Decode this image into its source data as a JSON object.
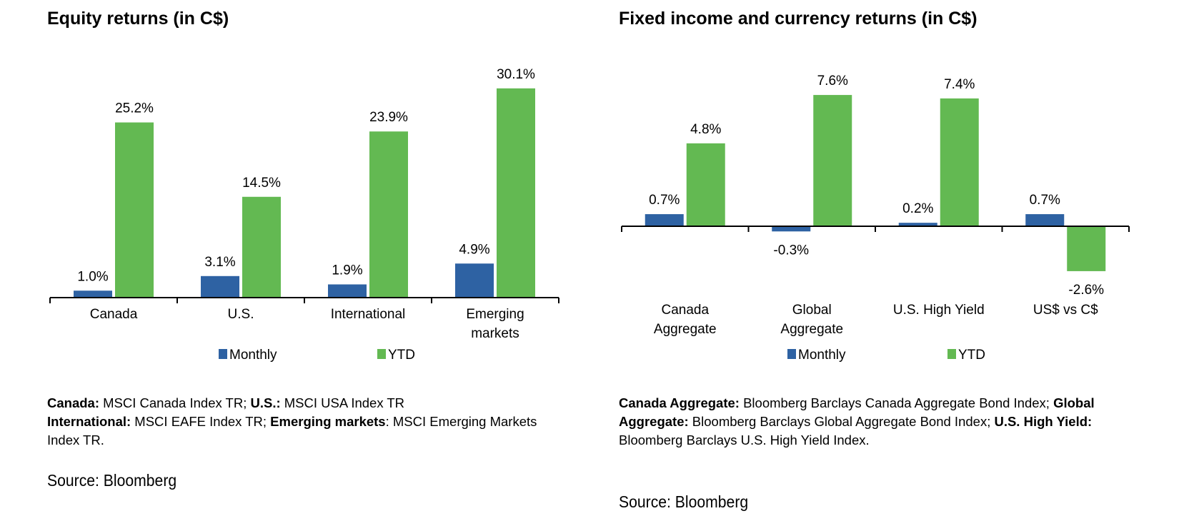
{
  "colors": {
    "monthly": "#2e62a3",
    "ytd": "#63b952",
    "axis": "#000000"
  },
  "chart_data": [
    {
      "type": "bar",
      "title": "Equity returns (in C$)",
      "categories": [
        [
          "Canada"
        ],
        [
          "U.S."
        ],
        [
          "International"
        ],
        [
          "Emerging",
          "markets"
        ]
      ],
      "series": [
        {
          "name": "Monthly",
          "values": [
            1.0,
            3.1,
            1.9,
            4.9
          ],
          "labels": [
            "1.0%",
            "3.1%",
            "1.9%",
            "4.9%"
          ]
        },
        {
          "name": "YTD",
          "values": [
            25.2,
            14.5,
            23.9,
            30.1
          ],
          "labels": [
            "25.2%",
            "14.5%",
            "23.9%",
            "30.1%"
          ]
        }
      ],
      "legend": "bottom",
      "grid": false,
      "unit": "%"
    },
    {
      "type": "bar",
      "title": "Fixed income and currency returns (in C$)",
      "categories": [
        [
          "Canada",
          "Aggregate"
        ],
        [
          "Global",
          "Aggregate"
        ],
        [
          "U.S. High Yield"
        ],
        [
          "US$ vs C$"
        ]
      ],
      "series": [
        {
          "name": "Monthly",
          "values": [
            0.7,
            -0.3,
            0.2,
            0.7
          ],
          "labels": [
            "0.7%",
            "-0.3%",
            "0.2%",
            "0.7%"
          ]
        },
        {
          "name": "YTD",
          "values": [
            4.8,
            7.6,
            7.4,
            -2.6
          ],
          "labels": [
            "4.8%",
            "7.6%",
            "7.4%",
            "-2.6%"
          ]
        }
      ],
      "legend": "bottom",
      "grid": false,
      "unit": "%"
    }
  ],
  "notes_left": [
    {
      "b": "Canada:",
      "t": " MSCI Canada Index TR; "
    },
    {
      "b": "U.S.:",
      "t": " MSCI USA Index TR"
    },
    {
      "br": true
    },
    {
      "b": "International:",
      "t": " MSCI EAFE Index TR; "
    },
    {
      "b": "Emerging markets",
      "t": ": MSCI Emerging Markets Index TR."
    }
  ],
  "notes_right": [
    {
      "b": "Canada Aggregate:",
      "t": " Bloomberg Barclays Canada Aggregate Bond Index; "
    },
    {
      "b": "Global Aggregate:",
      "t": " Bloomberg Barclays Global Aggregate Bond Index; "
    },
    {
      "b": "U.S. High Yield:",
      "t": " Bloomberg Barclays U.S. High Yield Index."
    }
  ],
  "source_left": "Source: Bloomberg",
  "source_right": "Source: Bloomberg"
}
